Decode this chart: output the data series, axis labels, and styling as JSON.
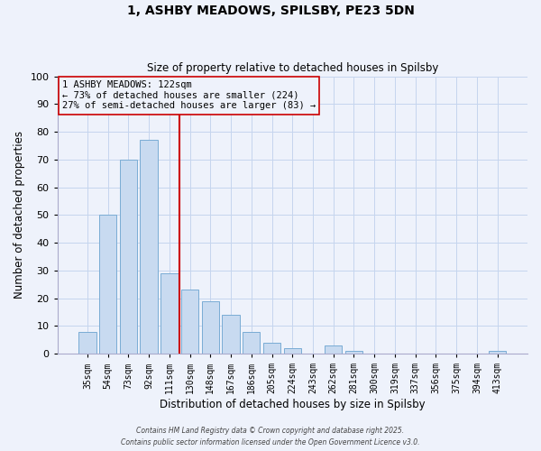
{
  "title_line1": "1, ASHBY MEADOWS, SPILSBY, PE23 5DN",
  "title_line2": "Size of property relative to detached houses in Spilsby",
  "xlabel": "Distribution of detached houses by size in Spilsby",
  "ylabel": "Number of detached properties",
  "bar_labels": [
    "35sqm",
    "54sqm",
    "73sqm",
    "92sqm",
    "111sqm",
    "130sqm",
    "148sqm",
    "167sqm",
    "186sqm",
    "205sqm",
    "224sqm",
    "243sqm",
    "262sqm",
    "281sqm",
    "300sqm",
    "319sqm",
    "337sqm",
    "356sqm",
    "375sqm",
    "394sqm",
    "413sqm"
  ],
  "bar_values": [
    8,
    50,
    70,
    77,
    29,
    23,
    19,
    14,
    8,
    4,
    2,
    0,
    3,
    1,
    0,
    0,
    0,
    0,
    0,
    0,
    1
  ],
  "bar_color": "#c8daf0",
  "bar_edge_color": "#7aacd4",
  "vline_x_idx": 4,
  "vline_color": "#cc0000",
  "ylim": [
    0,
    100
  ],
  "yticks": [
    0,
    10,
    20,
    30,
    40,
    50,
    60,
    70,
    80,
    90,
    100
  ],
  "annotation_line1": "1 ASHBY MEADOWS: 122sqm",
  "annotation_line2": "← 73% of detached houses are smaller (224)",
  "annotation_line3": "27% of semi-detached houses are larger (83) →",
  "bg_color": "#eef2fb",
  "grid_color": "#c5d5ee",
  "footer_line1": "Contains HM Land Registry data © Crown copyright and database right 2025.",
  "footer_line2": "Contains public sector information licensed under the Open Government Licence v3.0."
}
